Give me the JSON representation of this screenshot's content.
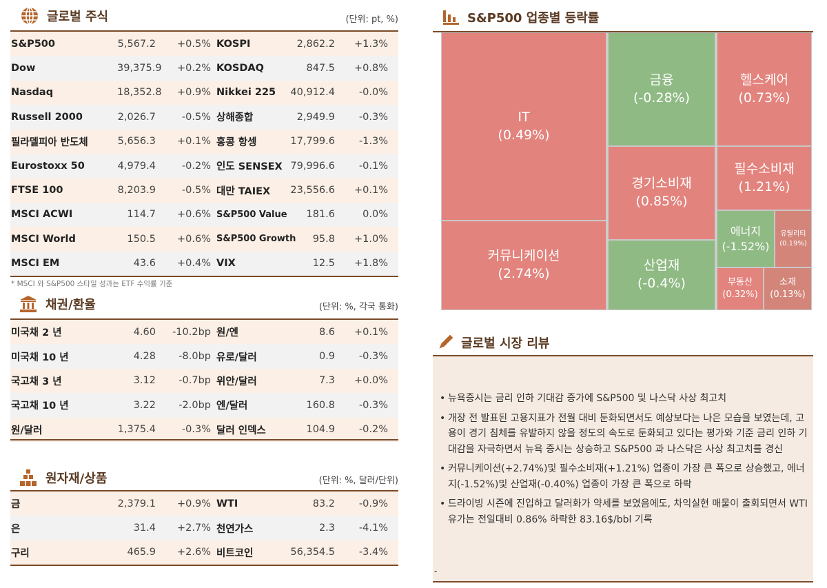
{
  "global_stocks": {
    "title": "글로벌 주식",
    "unit": "(단위: pt, %)",
    "icon": "globe-icon",
    "rows": [
      [
        "S&P500",
        "5,567.2",
        "+0.5%",
        "KOSPI",
        "2,862.2",
        "+1.3%"
      ],
      [
        "Dow",
        "39,375.9",
        "+0.2%",
        "KOSDAQ",
        "847.5",
        "+0.8%"
      ],
      [
        "Nasdaq",
        "18,352.8",
        "+0.9%",
        "Nikkei 225",
        "40,912.4",
        "-0.0%"
      ],
      [
        "Russell 2000",
        "2,026.7",
        "-0.5%",
        "상해종합",
        "2,949.9",
        "-0.3%"
      ],
      [
        "필라델피아 반도체",
        "5,656.3",
        "+0.1%",
        "홍콩 항셍",
        "17,799.6",
        "-1.3%"
      ],
      [
        "Eurostoxx 50",
        "4,979.4",
        "-0.2%",
        "인도 SENSEX",
        "79,996.6",
        "-0.1%"
      ],
      [
        "FTSE 100",
        "8,203.9",
        "-0.5%",
        "대만 TAIEX",
        "23,556.6",
        "+0.1%"
      ],
      [
        "MSCI ACWI",
        "114.7",
        "+0.6%",
        "S&P500 Value",
        "181.6",
        "0.0%"
      ],
      [
        "MSCI World",
        "150.5",
        "+0.6%",
        "S&P500 Growth",
        "95.8",
        "+1.0%"
      ],
      [
        "MSCI EM",
        "43.6",
        "+0.4%",
        "VIX",
        "12.5",
        "+1.8%"
      ]
    ],
    "footnote": "* MSCI 와 S&P500 스타일 성과는 ETF 수익률 기준"
  },
  "bonds_fx": {
    "title": "채권/환율",
    "unit": "(단위: %, 각국 통화)",
    "icon": "bank-icon",
    "rows": [
      [
        "미국채 2 년",
        "4.60",
        "-10.2bp",
        "원/엔",
        "8.6",
        "+0.1%"
      ],
      [
        "미국채 10 년",
        "4.28",
        "-8.0bp",
        "유로/달러",
        "0.9",
        "-0.3%"
      ],
      [
        "국고채 3 년",
        "3.12",
        "-0.7bp",
        "위안/달러",
        "7.3",
        "+0.0%"
      ],
      [
        "국고채 10 년",
        "3.22",
        "-2.0bp",
        "엔/달러",
        "160.8",
        "-0.3%"
      ],
      [
        "원/달러",
        "1,375.4",
        "-0.3%",
        "달러 인덱스",
        "104.9",
        "-0.2%"
      ]
    ]
  },
  "commodities": {
    "title": "원자재/상품",
    "unit": "(단위: %, 달러/단위)",
    "icon": "gold-bars-icon",
    "rows": [
      [
        "금",
        "2,379.1",
        "+0.9%",
        "WTI",
        "83.2",
        "-0.9%"
      ],
      [
        "은",
        "31.4",
        "+2.7%",
        "천연가스",
        "2.3",
        "-4.1%"
      ],
      [
        "구리",
        "465.9",
        "+2.6%",
        "비트코인",
        "56,354.5",
        "-3.4%"
      ]
    ]
  },
  "sector": {
    "title": "S&P500 업종별 등락률",
    "icon": "bar-chart-icon",
    "colors": {
      "up": "#e3837d",
      "down": "#8fba84",
      "small_up": "#d3857a"
    },
    "cells": [
      {
        "name": "IT",
        "value": "(0.49%)"
      },
      {
        "name": "커뮤니케이션",
        "value": "(2.74%)"
      },
      {
        "name": "금융",
        "value": "(-0.28%)"
      },
      {
        "name": "경기소비재",
        "value": "(0.85%)"
      },
      {
        "name": "산업재",
        "value": "(-0.4%)"
      },
      {
        "name": "헬스케어",
        "value": "(0.73%)"
      },
      {
        "name": "필수소비재",
        "value": "(1.21%)"
      },
      {
        "name": "에너지",
        "value": "(-1.52%)"
      },
      {
        "name": "유틸리티",
        "value": "(0.19%)"
      },
      {
        "name": "부동산",
        "value": "(0.32%)"
      },
      {
        "name": "소재",
        "value": "(0.13%)"
      }
    ]
  },
  "review": {
    "title": "글로벌 시장 리뷰",
    "icon": "pen-icon",
    "dash": "-",
    "bullets": [
      "뉴욕증시는 금리 인하 기대감 증가에 S&P500 및 나스닥 사상 최고치",
      "개장 전 발표된 고용지표가 전월 대비 둔화되면서도 예상보다는 나은 모습을 보였는데, 고용이 경기 침체를 유발하지 않을 정도의 속도로 둔화되고 있다는 평가와 기준 금리 인하 기대감을 자극하면서 뉴욕 증시는 상승하고 S&P500 과 나스닥은 사상 최고치를 경신",
      "커뮤니케이션(+2.74%)및 필수소비재(+1.21%) 업종이 가장 큰 폭으로 상승했고, 에너지(-1.52%)및 산업재(-0.40%) 업종이 가장 큰 폭으로 하락",
      "드라이빙 시즌에 진입하고 달러화가 약세를 보였음에도, 차익실현 매물이 출회되면서 WTI 유가는 전일대비 0.86% 하락한 83.16$/bbl 기록"
    ]
  }
}
